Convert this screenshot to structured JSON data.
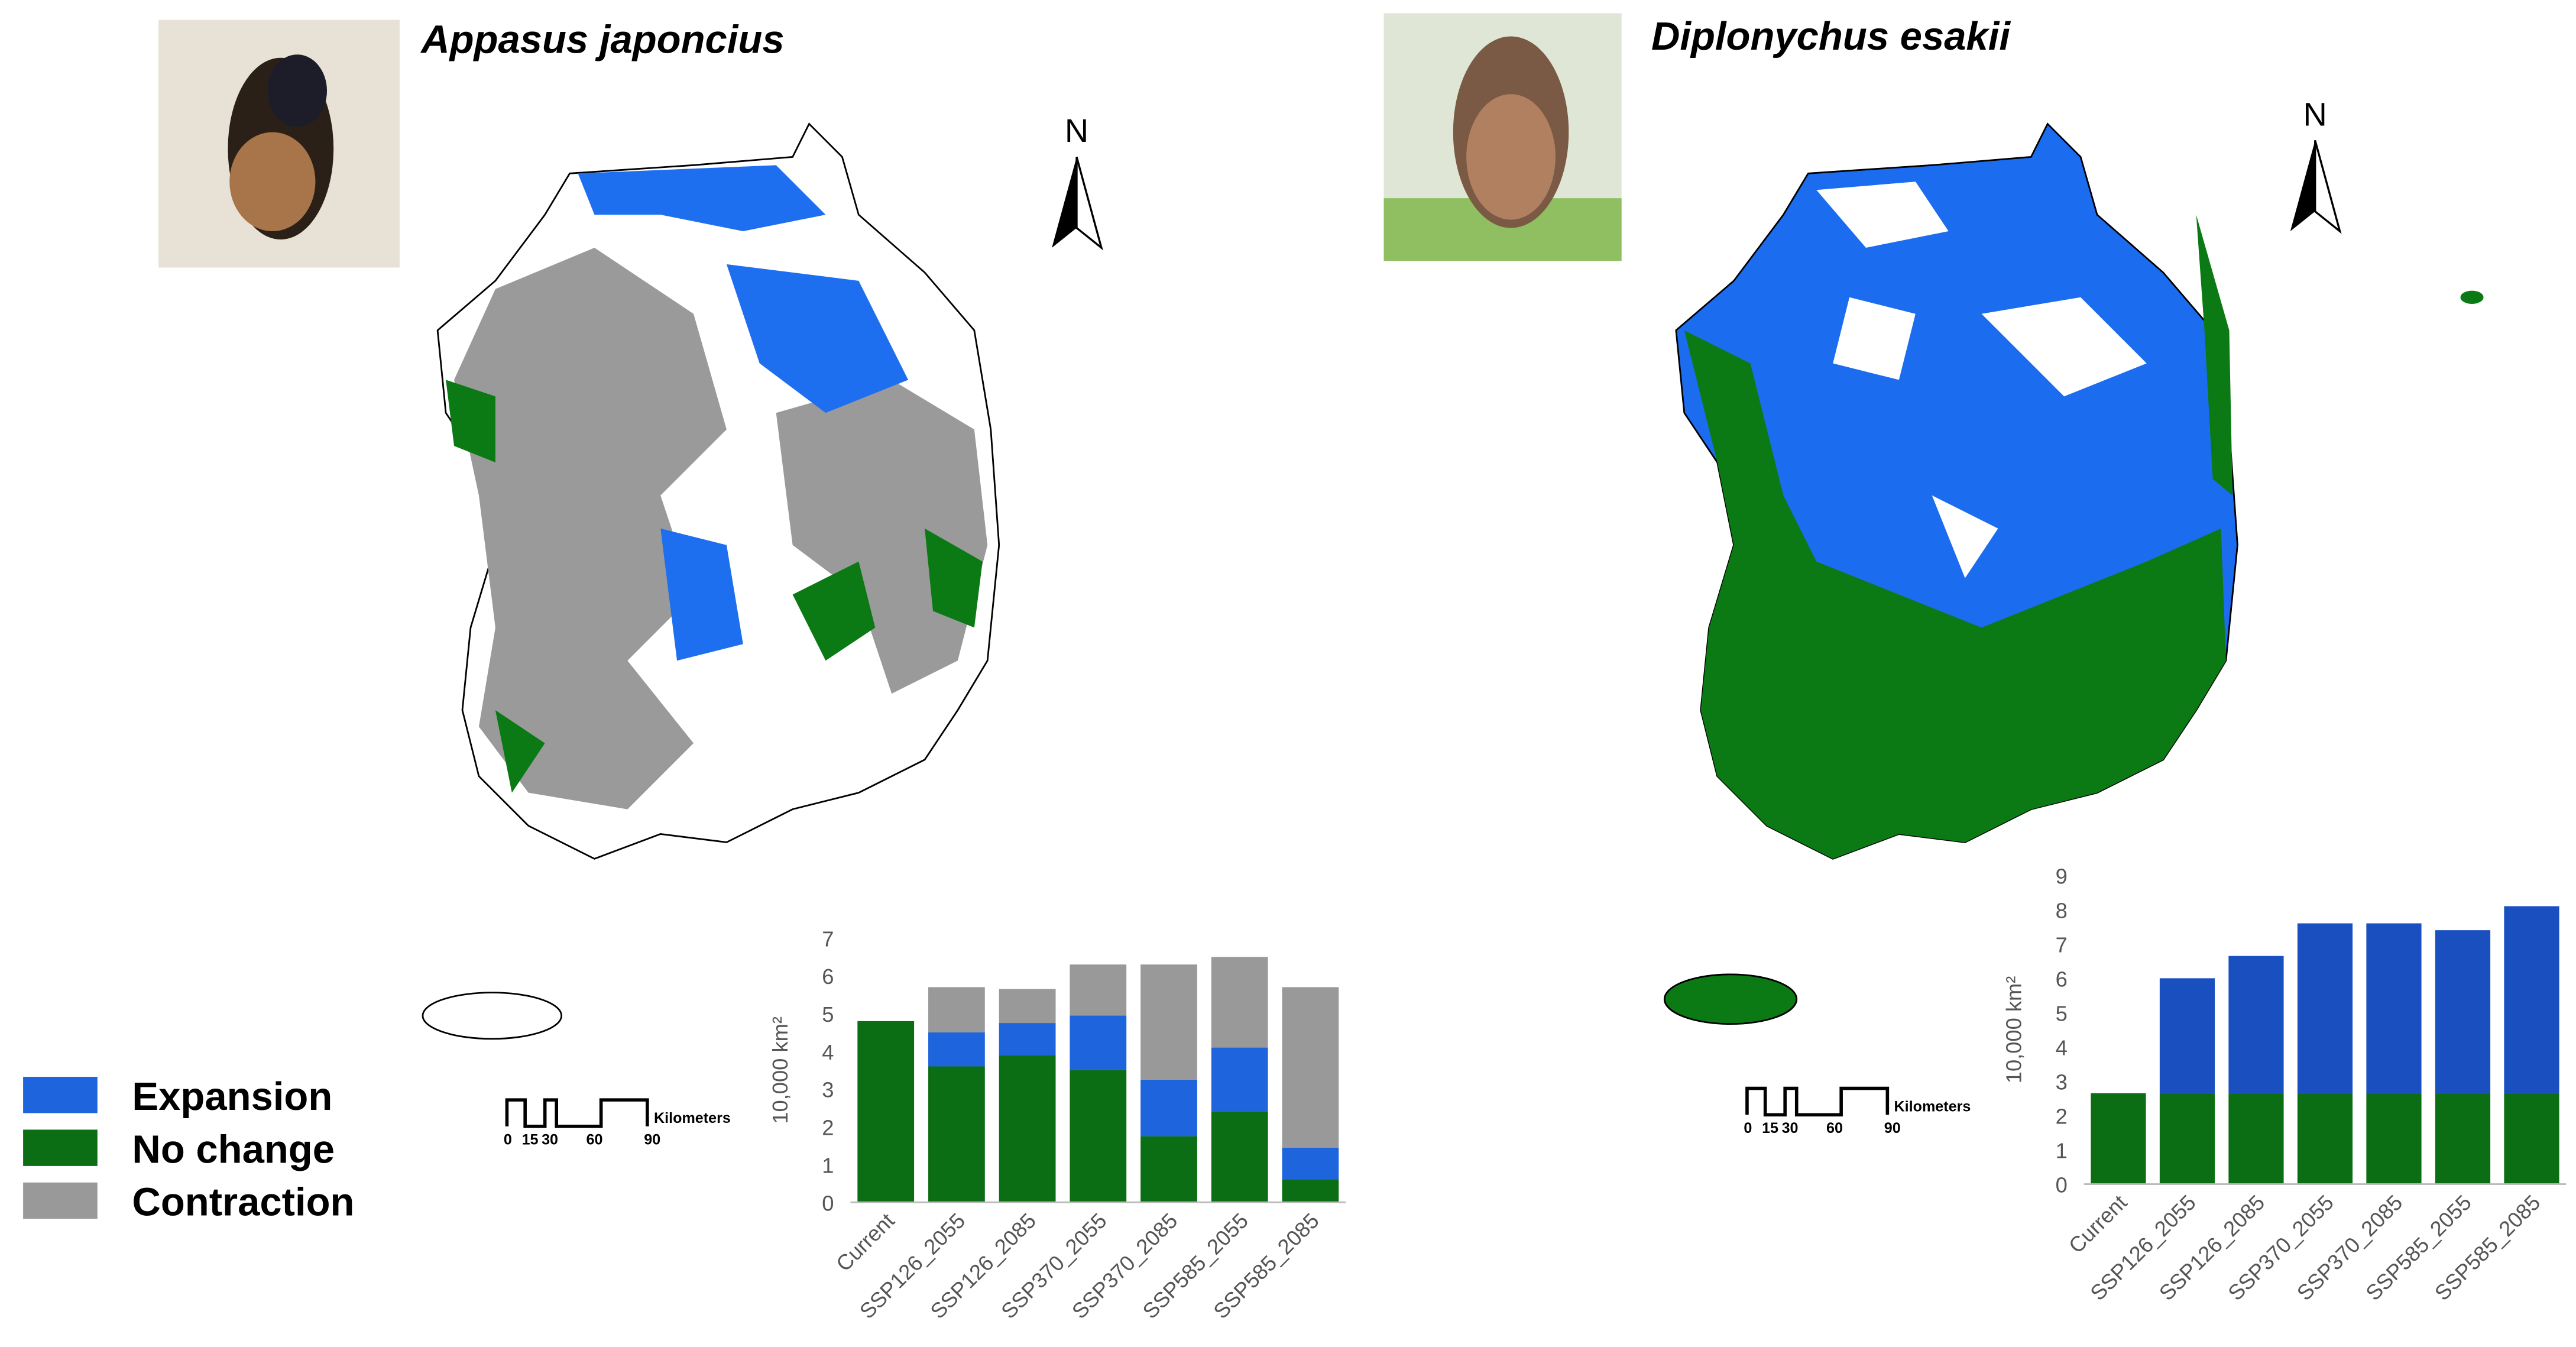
{
  "chart_data": [
    {
      "type": "bar",
      "stacked": true,
      "title": "Appasus japoncius",
      "y_label": "10,000 km²",
      "categories": [
        "Current",
        "SSP126_2055",
        "SSP126_2085",
        "SSP370_2055",
        "SSP370_2085",
        "SSP585_2055",
        "SSP585_2085"
      ],
      "series": [
        {
          "name": "No change",
          "color": "#0b6e14",
          "values": [
            4.8,
            3.6,
            3.9,
            3.5,
            1.75,
            2.4,
            0.6
          ]
        },
        {
          "name": "Expansion",
          "color": "#1e64dc",
          "values": [
            0,
            0.9,
            0.85,
            1.45,
            1.5,
            1.7,
            0.85
          ]
        },
        {
          "name": "Contraction",
          "color": "#999999",
          "values": [
            0,
            1.2,
            0.9,
            1.35,
            3.05,
            2.4,
            4.25
          ]
        }
      ],
      "ylim": [
        0,
        7
      ],
      "yticks": [
        0,
        1,
        2,
        3,
        4,
        5,
        6,
        7
      ],
      "grid": false
    },
    {
      "type": "bar",
      "stacked": true,
      "title": "Diplonychus esakii",
      "y_label": "10,000 km²",
      "categories": [
        "Current",
        "SSP126_2055",
        "SSP126_2085",
        "SSP370_2055",
        "SSP370_2085",
        "SSP585_2055",
        "SSP585_2085"
      ],
      "series": [
        {
          "color": "#0b6e14",
          "values": [
            2.65,
            2.65,
            2.65,
            2.65,
            2.65,
            2.65,
            2.65
          ]
        },
        {
          "color": "#1a4fc0",
          "values": [
            0,
            3.35,
            4.0,
            4.95,
            4.95,
            4.75,
            5.45
          ]
        }
      ],
      "ylim": [
        0,
        9
      ],
      "yticks": [
        0,
        1,
        2,
        3,
        4,
        5,
        6,
        7,
        8,
        9
      ],
      "grid": false
    }
  ],
  "maps": [
    {
      "north": "N",
      "scale_labels": [
        "0",
        "15",
        "30",
        "60",
        "90"
      ],
      "scale_unit": "Kilometers"
    },
    {
      "north": "N",
      "scale_labels": [
        "0",
        "15",
        "30",
        "60",
        "90"
      ],
      "scale_unit": "Kilometers"
    }
  ]
}
